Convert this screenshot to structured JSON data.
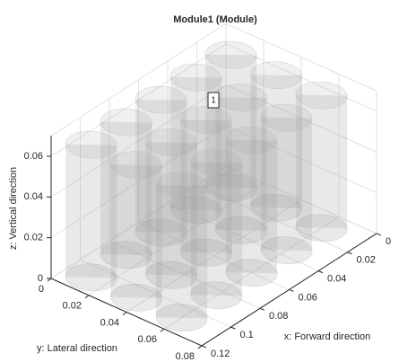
{
  "chart_data": {
    "type": "3d",
    "title": "Module1 (Module)",
    "xlabel": "x: Forward direction",
    "ylabel": "y: Lateral direction",
    "zlabel": "z: Vertical direction",
    "annotation": "1",
    "xlim": [
      0,
      0.12
    ],
    "xticks": [
      0,
      0.02,
      0.04,
      0.06,
      0.08,
      0.1,
      0.12
    ],
    "ylim": [
      0,
      0.08
    ],
    "yticks": [
      0,
      0.02,
      0.04,
      0.06,
      0.08
    ],
    "zlim": [
      0,
      0.07
    ],
    "zticks": [
      0,
      0.02,
      0.04,
      0.06
    ],
    "grid": true
  }
}
